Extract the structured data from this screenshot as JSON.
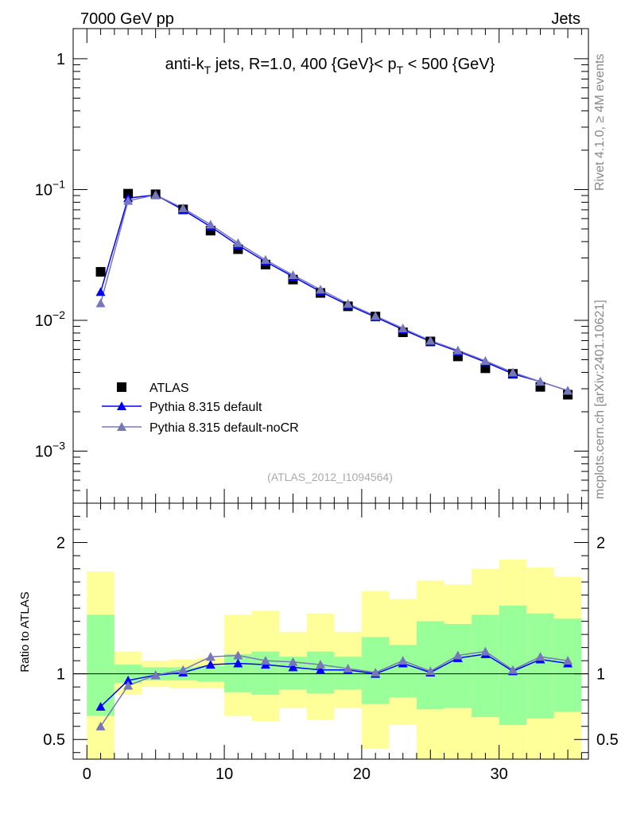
{
  "header": {
    "left": "7000 GeV pp",
    "right": "Jets"
  },
  "side_labels": {
    "rivet": "Rivet 4.1.0, ≥ 4M events",
    "mcplots": "mcplots.cern.ch [arXiv:2401.10621]"
  },
  "chart_data": [
    {
      "type": "scatter",
      "panel": "main",
      "title_parts": {
        "pre": "anti-k",
        "sub1": "T",
        "mid": " jets, R=1.0, 400 {GeV}< p",
        "sub2": "T",
        "post": " < 500 {GeV}"
      },
      "analysis_id": "(ATLAS_2012_I1094564)",
      "yscale": "log",
      "xlim": [
        -1,
        36.5
      ],
      "ylim": [
        0.0004,
        1.7
      ],
      "y_ticks": [
        {
          "base": "1",
          "exp": ""
        },
        {
          "base": "10",
          "exp": "−1"
        },
        {
          "base": "10",
          "exp": "−2"
        },
        {
          "base": "10",
          "exp": "−3"
        }
      ],
      "y_tick_values": [
        1,
        0.1,
        0.01,
        0.001
      ],
      "legend": [
        "ATLAS",
        "Pythia 8.315 default",
        "Pythia 8.315 default-noCR"
      ],
      "x": [
        1,
        3,
        5,
        7,
        9,
        11,
        13,
        15,
        17,
        19,
        21,
        23,
        25,
        27,
        29,
        31,
        33,
        35
      ],
      "series": [
        {
          "name": "ATLAS",
          "marker": "square",
          "color": "#000000",
          "values": [
            0.0235,
            0.093,
            0.092,
            0.0705,
            0.0485,
            0.035,
            0.0267,
            0.0205,
            0.0162,
            0.0128,
            0.0107,
            0.0081,
            0.0069,
            0.0053,
            0.0043,
            0.0039,
            0.0031,
            0.0027
          ]
        },
        {
          "name": "Pythia 8.315 default",
          "marker": "triangle",
          "color": "#0000ff",
          "values": [
            0.0165,
            0.086,
            0.091,
            0.07,
            0.052,
            0.0375,
            0.0281,
            0.0216,
            0.0166,
            0.0131,
            0.0106,
            0.0085,
            0.0069,
            0.0058,
            0.0048,
            0.0039,
            0.0034,
            0.0029
          ]
        },
        {
          "name": "Pythia 8.315 default-noCR",
          "marker": "triangle",
          "color": "#7777bb",
          "values": [
            0.0135,
            0.082,
            0.091,
            0.072,
            0.054,
            0.039,
            0.029,
            0.0222,
            0.0172,
            0.0134,
            0.0108,
            0.0087,
            0.007,
            0.0059,
            0.0049,
            0.004,
            0.0034,
            0.0029
          ]
        }
      ]
    },
    {
      "type": "scatter",
      "panel": "ratio",
      "ylabel": "Ratio to ATLAS",
      "xlim": [
        -1,
        36.5
      ],
      "ylim": [
        0.35,
        2.3
      ],
      "y_ticks": [
        "2",
        "1",
        "0.5"
      ],
      "y_tick_values": [
        2,
        1,
        0.5
      ],
      "x_ticks": [
        "0",
        "10",
        "20",
        "30"
      ],
      "x_tick_values": [
        0,
        10,
        20,
        30
      ],
      "bins": [
        [
          0,
          2
        ],
        [
          2,
          4
        ],
        [
          4,
          6
        ],
        [
          6,
          8
        ],
        [
          8,
          10
        ],
        [
          10,
          12
        ],
        [
          12,
          14
        ],
        [
          14,
          16
        ],
        [
          16,
          18
        ],
        [
          18,
          20
        ],
        [
          20,
          22
        ],
        [
          22,
          24
        ],
        [
          24,
          26
        ],
        [
          26,
          28
        ],
        [
          28,
          30
        ],
        [
          30,
          32
        ],
        [
          32,
          34
        ],
        [
          34,
          36
        ]
      ],
      "band_inner": [
        [
          0.68,
          1.45
        ],
        [
          0.93,
          1.07
        ],
        [
          0.95,
          1.05
        ],
        [
          0.95,
          1.05
        ],
        [
          0.94,
          1.06
        ],
        [
          0.86,
          1.15
        ],
        [
          0.84,
          1.17
        ],
        [
          0.88,
          1.13
        ],
        [
          0.85,
          1.17
        ],
        [
          0.88,
          1.13
        ],
        [
          0.77,
          1.28
        ],
        [
          0.82,
          1.22
        ],
        [
          0.73,
          1.4
        ],
        [
          0.74,
          1.38
        ],
        [
          0.67,
          1.45
        ],
        [
          0.61,
          1.52
        ],
        [
          0.66,
          1.46
        ],
        [
          0.71,
          1.42
        ]
      ],
      "band_outer": [
        [
          0.35,
          1.78
        ],
        [
          0.84,
          1.17
        ],
        [
          0.9,
          1.1
        ],
        [
          0.89,
          1.11
        ],
        [
          0.89,
          1.12
        ],
        [
          0.68,
          1.45
        ],
        [
          0.64,
          1.48
        ],
        [
          0.74,
          1.32
        ],
        [
          0.65,
          1.46
        ],
        [
          0.74,
          1.32
        ],
        [
          0.43,
          1.63
        ],
        [
          0.61,
          1.57
        ],
        [
          0.35,
          1.71
        ],
        [
          0.35,
          1.68
        ],
        [
          0.35,
          1.8
        ],
        [
          0.35,
          1.87
        ],
        [
          0.35,
          1.81
        ],
        [
          0.35,
          1.74
        ]
      ],
      "band_colors": {
        "inner": "#99ff99",
        "outer": "#ffff99"
      },
      "x": [
        1,
        3,
        5,
        7,
        9,
        11,
        13,
        15,
        17,
        19,
        21,
        23,
        25,
        27,
        29,
        31,
        33,
        35
      ],
      "series": [
        {
          "name": "Pythia 8.315 default",
          "marker": "triangle",
          "color": "#0000ff",
          "values": [
            0.75,
            0.95,
            0.99,
            1.01,
            1.07,
            1.08,
            1.07,
            1.05,
            1.03,
            1.03,
            1.0,
            1.08,
            1.01,
            1.12,
            1.15,
            1.02,
            1.11,
            1.08
          ]
        },
        {
          "name": "Pythia 8.315 default-noCR",
          "marker": "triangle",
          "color": "#7777bb",
          "values": [
            0.6,
            0.91,
            0.99,
            1.03,
            1.13,
            1.14,
            1.1,
            1.09,
            1.07,
            1.04,
            1.01,
            1.1,
            1.02,
            1.14,
            1.17,
            1.03,
            1.13,
            1.1
          ]
        }
      ]
    }
  ]
}
